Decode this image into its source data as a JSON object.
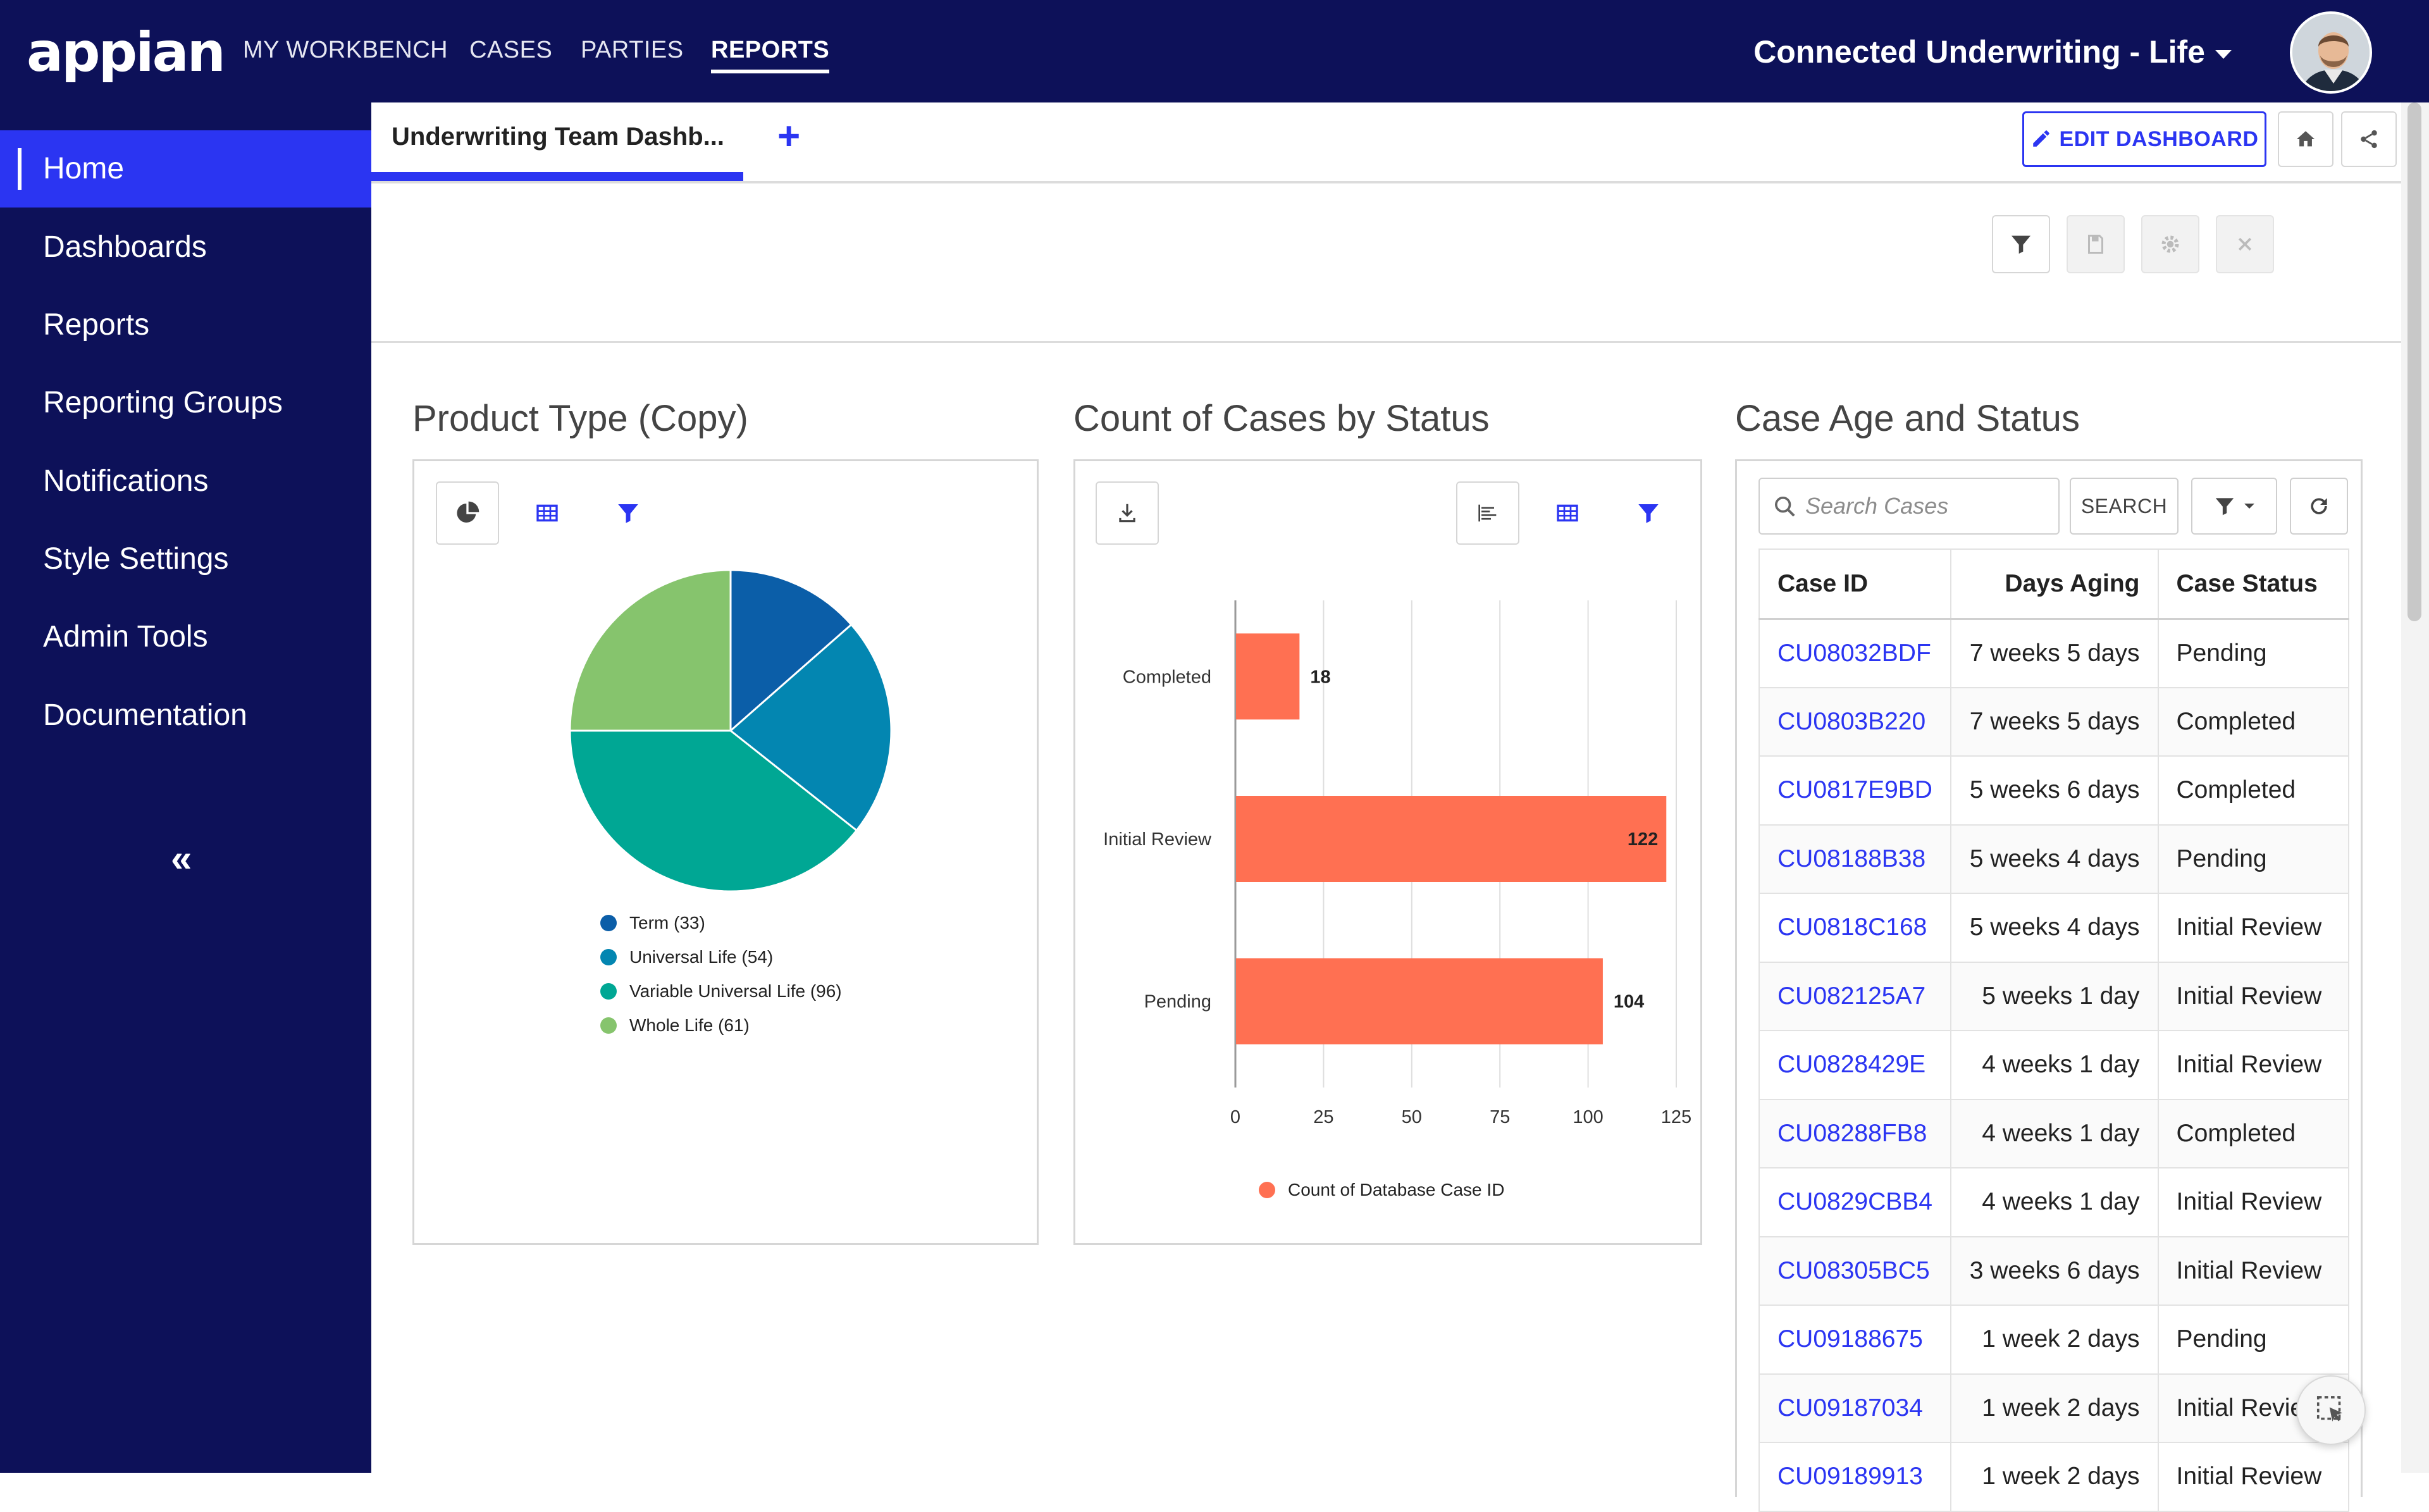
{
  "header": {
    "logo": "appian",
    "nav": [
      "MY WORKBENCH",
      "CASES",
      "PARTIES",
      "REPORTS"
    ],
    "active_nav": "REPORTS",
    "app_title": "Connected Underwriting - Life"
  },
  "sidebar": {
    "items": [
      "Home",
      "Dashboards",
      "Reports",
      "Reporting Groups",
      "Notifications",
      "Style Settings",
      "Admin Tools",
      "Documentation"
    ],
    "active": "Home",
    "collapse_label": "«"
  },
  "tabs": {
    "active_tab": "Underwriting Team Dashb...",
    "add_label": "+",
    "edit_label": "EDIT DASHBOARD"
  },
  "cards": {
    "product_type": {
      "title": "Product Type (Copy)",
      "chart_data": {
        "type": "pie",
        "slices": [
          {
            "label": "Term (33)",
            "value": 33,
            "color": "#0b5ea8"
          },
          {
            "label": "Universal Life (54)",
            "value": 54,
            "color": "#0386b1"
          },
          {
            "label": "Variable Universal Life (96)",
            "value": 96,
            "color": "#00a794"
          },
          {
            "label": "Whole Life (61)",
            "value": 61,
            "color": "#86c46d"
          }
        ]
      }
    },
    "cases_by_status": {
      "title": "Count of Cases by Status",
      "chart_data": {
        "type": "bar",
        "orientation": "horizontal",
        "categories": [
          "Completed",
          "Initial Review",
          "Pending"
        ],
        "values": [
          18,
          122,
          104
        ],
        "xticks": [
          "0",
          "25",
          "50",
          "75",
          "100",
          "125"
        ],
        "xlim": [
          0,
          125
        ],
        "series_name": "Count of Database Case ID",
        "color": "#ff7052"
      }
    },
    "case_age": {
      "title": "Case Age and Status",
      "search_placeholder": "Search Cases",
      "search_button": "SEARCH",
      "columns": [
        "Case ID",
        "Days Aging",
        "Case Status"
      ],
      "rows": [
        [
          "CU08032BDF",
          "7 weeks 5 days",
          "Pending"
        ],
        [
          "CU0803B220",
          "7 weeks 5 days",
          "Completed"
        ],
        [
          "CU0817E9BD",
          "5 weeks 6 days",
          "Completed"
        ],
        [
          "CU08188B38",
          "5 weeks 4 days",
          "Pending"
        ],
        [
          "CU0818C168",
          "5 weeks 4 days",
          "Initial Review"
        ],
        [
          "CU082125A7",
          "5 weeks 1 day",
          "Initial Review"
        ],
        [
          "CU0828429E",
          "4 weeks 1 day",
          "Initial Review"
        ],
        [
          "CU08288FB8",
          "4 weeks 1 day",
          "Completed"
        ],
        [
          "CU0829CBB4",
          "4 weeks 1 day",
          "Initial Review"
        ],
        [
          "CU08305BC5",
          "3 weeks 6 days",
          "Initial Review"
        ],
        [
          "CU09188675",
          "1 week 2 days",
          "Pending"
        ],
        [
          "CU09187034",
          "1 week 2 days",
          "Initial Revie"
        ],
        [
          "CU09189913",
          "1 week 2 days",
          "Initial Review"
        ]
      ]
    }
  }
}
